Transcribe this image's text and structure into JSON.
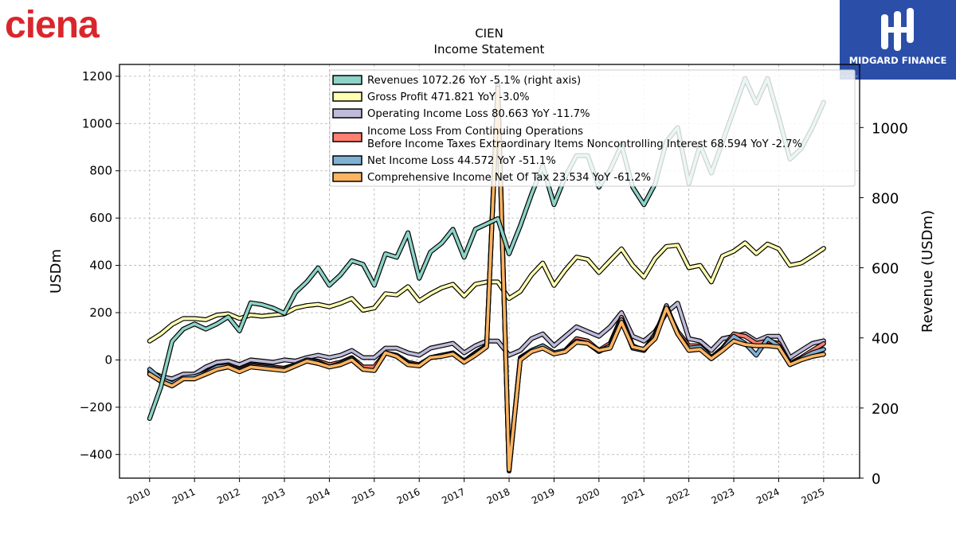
{
  "branding": {
    "company_logo_text": "ciena",
    "publisher_name": "MIDGARD FINANCE"
  },
  "chart_data": {
    "type": "line",
    "title": "CIEN",
    "subtitle": "Income Statement",
    "ylabel_left": "USDm",
    "ylabel_right": "Revenue (USDm)",
    "ylim_left": [
      -500,
      1250
    ],
    "ylim_right": [
      0,
      1180
    ],
    "left_ticks": [
      "1200",
      "1000",
      "800",
      "600",
      "400",
      "200",
      "0",
      "−200",
      "−400"
    ],
    "left_tick_values": [
      1200,
      1000,
      800,
      600,
      400,
      200,
      0,
      -200,
      -400
    ],
    "right_ticks": [
      "1000",
      "800",
      "600",
      "400",
      "200",
      "0"
    ],
    "right_tick_values": [
      1000,
      800,
      600,
      400,
      200,
      0
    ],
    "x_ticks": [
      "2010",
      "2011",
      "2012",
      "2013",
      "2014",
      "2015",
      "2016",
      "2017",
      "2018",
      "2019",
      "2020",
      "2021",
      "2022",
      "2023",
      "2024",
      "2025"
    ],
    "x_tick_values": [
      2010,
      2011,
      2012,
      2013,
      2014,
      2015,
      2016,
      2017,
      2018,
      2019,
      2020,
      2021,
      2022,
      2023,
      2024,
      2025
    ],
    "grid": true,
    "legend_position": "top-right",
    "x": [
      2010.0,
      2010.25,
      2010.5,
      2010.75,
      2011.0,
      2011.25,
      2011.5,
      2011.75,
      2012.0,
      2012.25,
      2012.5,
      2012.75,
      2013.0,
      2013.25,
      2013.5,
      2013.75,
      2014.0,
      2014.25,
      2014.5,
      2014.75,
      2015.0,
      2015.25,
      2015.5,
      2015.75,
      2016.0,
      2016.25,
      2016.5,
      2016.75,
      2017.0,
      2017.25,
      2017.5,
      2017.75,
      2018.0,
      2018.25,
      2018.5,
      2018.75,
      2019.0,
      2019.25,
      2019.5,
      2019.75,
      2020.0,
      2020.25,
      2020.5,
      2020.75,
      2021.0,
      2021.25,
      2021.5,
      2021.75,
      2022.0,
      2022.25,
      2022.5,
      2022.75,
      2023.0,
      2023.25,
      2023.5,
      2023.75,
      2024.0,
      2024.25,
      2024.5,
      2024.75,
      2025.0
    ],
    "series": [
      {
        "name": "Revenues  1072.26 YoY -5.1% (right axis)",
        "axis": "right",
        "color": "#8dd3c7",
        "values": [
          170,
          260,
          390,
          425,
          440,
          425,
          440,
          460,
          420,
          500,
          495,
          485,
          470,
          530,
          560,
          600,
          550,
          580,
          620,
          610,
          550,
          640,
          630,
          700,
          570,
          645,
          670,
          710,
          630,
          710,
          725,
          740,
          640,
          720,
          810,
          890,
          780,
          860,
          920,
          920,
          830,
          880,
          950,
          830,
          780,
          840,
          960,
          1000,
          840,
          950,
          870,
          960,
          1050,
          1140,
          1070,
          1140,
          1030,
          910,
          940,
          1000,
          1072
        ]
      },
      {
        "name": "Gross Profit  471.821 YoY -3.0%",
        "axis": "left",
        "color": "#ffffb3",
        "values": [
          80,
          110,
          150,
          175,
          175,
          170,
          190,
          195,
          175,
          190,
          185,
          190,
          195,
          220,
          230,
          235,
          225,
          240,
          260,
          210,
          220,
          280,
          275,
          310,
          250,
          280,
          305,
          320,
          270,
          320,
          330,
          330,
          260,
          290,
          360,
          410,
          315,
          380,
          435,
          425,
          370,
          420,
          470,
          400,
          350,
          430,
          480,
          485,
          390,
          400,
          330,
          440,
          460,
          495,
          450,
          490,
          470,
          400,
          410,
          440,
          472
        ]
      },
      {
        "name": "Operating Income Loss  80.663 YoY -11.7%",
        "axis": "left",
        "color": "#bebada",
        "values": [
          -50,
          -70,
          -80,
          -60,
          -60,
          -30,
          -10,
          -5,
          -20,
          0,
          -5,
          -10,
          0,
          -5,
          10,
          20,
          10,
          20,
          40,
          10,
          10,
          50,
          50,
          30,
          20,
          50,
          60,
          70,
          30,
          60,
          80,
          80,
          20,
          40,
          90,
          110,
          60,
          100,
          140,
          120,
          100,
          140,
          200,
          100,
          80,
          120,
          200,
          240,
          90,
          80,
          40,
          90,
          100,
          110,
          80,
          100,
          100,
          10,
          40,
          70,
          81
        ]
      },
      {
        "name": "Income Loss From Continuing Operations\nBefore Income Taxes Extraordinary Items Noncontrolling Interest  68.594 YoY -2.7%",
        "axis": "left",
        "color": "#fb8072",
        "values": [
          -60,
          -90,
          -110,
          -80,
          -75,
          -50,
          -30,
          -20,
          -40,
          -20,
          -25,
          -30,
          -35,
          -20,
          0,
          -5,
          -20,
          -10,
          10,
          -30,
          -30,
          30,
          20,
          -10,
          -20,
          10,
          20,
          30,
          -5,
          30,
          60,
          1140,
          -460,
          10,
          40,
          60,
          30,
          40,
          90,
          80,
          40,
          70,
          180,
          60,
          40,
          110,
          220,
          120,
          60,
          60,
          10,
          50,
          110,
          100,
          70,
          80,
          70,
          -15,
          10,
          40,
          69
        ]
      },
      {
        "name": "Net Income Loss  44.572 YoY -51.1%",
        "axis": "left",
        "color": "#80b1d3",
        "values": [
          -40,
          -80,
          -100,
          -75,
          -70,
          -55,
          -30,
          -25,
          -45,
          -25,
          -30,
          -35,
          -40,
          -20,
          0,
          -10,
          -30,
          -15,
          5,
          -40,
          -45,
          30,
          15,
          -15,
          -25,
          10,
          20,
          25,
          -5,
          25,
          60,
          1170,
          -470,
          5,
          40,
          60,
          30,
          40,
          80,
          70,
          35,
          60,
          170,
          50,
          40,
          100,
          230,
          110,
          50,
          55,
          10,
          45,
          100,
          70,
          20,
          90,
          60,
          -20,
          5,
          30,
          45
        ]
      },
      {
        "name": "Comprehensive Income Net Of Tax  23.534 YoY -61.2%",
        "axis": "left",
        "color": "#fdb462",
        "values": [
          -60,
          -90,
          -110,
          -80,
          -80,
          -60,
          -40,
          -30,
          -50,
          -30,
          -35,
          -40,
          -45,
          -25,
          -5,
          -15,
          -30,
          -20,
          0,
          -40,
          -45,
          30,
          15,
          -20,
          -25,
          10,
          15,
          25,
          -10,
          20,
          55,
          1150,
          -465,
          0,
          35,
          50,
          25,
          35,
          75,
          70,
          40,
          50,
          160,
          55,
          45,
          90,
          220,
          110,
          40,
          45,
          5,
          40,
          80,
          65,
          60,
          60,
          55,
          -20,
          0,
          15,
          24
        ]
      }
    ]
  }
}
